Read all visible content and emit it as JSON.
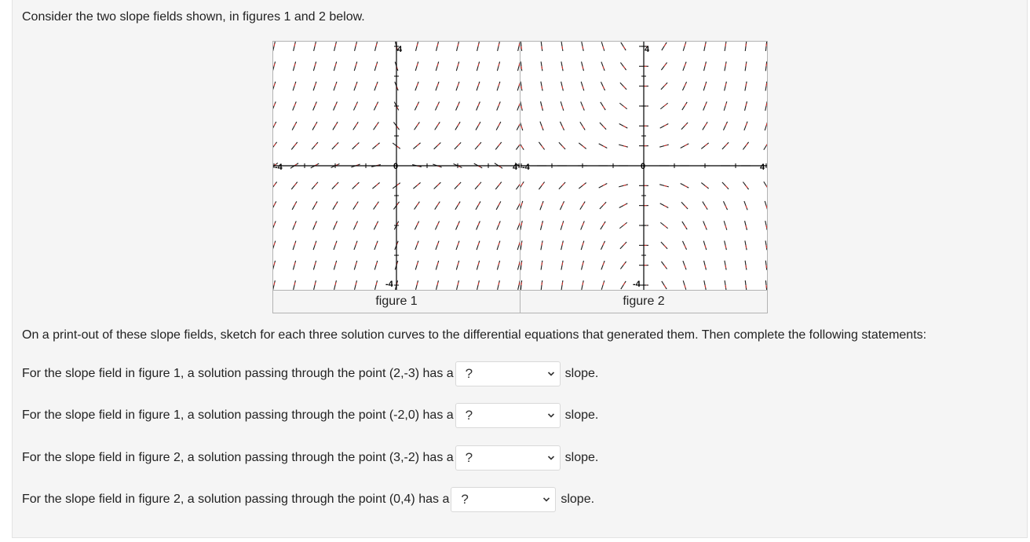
{
  "intro_text": "Consider the two slope fields shown, in figures 1 and 2 below.",
  "figures": [
    {
      "caption": "figure 1",
      "axis_labels": {
        "top": "4",
        "bottom": "-4",
        "left": "-4",
        "right": "4",
        "origin": "0"
      }
    },
    {
      "caption": "figure 2",
      "axis_labels": {
        "top": "4",
        "bottom": "-4",
        "left": "-4",
        "right": "4",
        "origin": "0"
      }
    }
  ],
  "instructions": "On a print-out of these slope fields, sketch for each three solution curves to the differential equations that generated them. Then complete the following statements:",
  "questions": [
    {
      "prefix": "For the slope field in figure 1, a solution passing through the point (2,-3) has a",
      "selected": "?",
      "suffix": "slope."
    },
    {
      "prefix": "For the slope field in figure 1, a solution passing through the point (-2,0) has a",
      "selected": "?",
      "suffix": "slope."
    },
    {
      "prefix": "For the slope field in figure 2, a solution passing through the point (3,-2) has a",
      "selected": "?",
      "suffix": "slope."
    },
    {
      "prefix": "For the slope field in figure 2, a solution passing through the point (0,4) has a",
      "selected": "?",
      "suffix": "slope."
    }
  ],
  "colors": {
    "segment": "#1a1a1a",
    "segment_accent": "#e0302a",
    "axis": "#000000",
    "border": "#b3b3b3"
  },
  "icons": {
    "dropdown": "chevron-down-icon"
  }
}
